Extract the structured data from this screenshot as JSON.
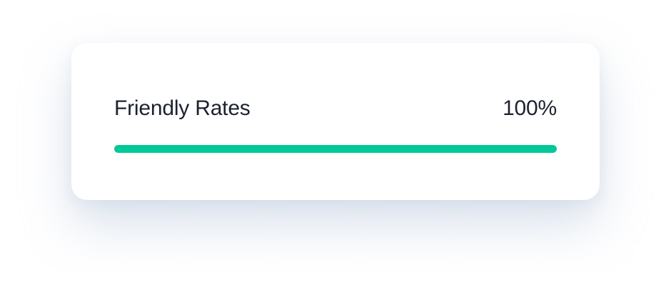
{
  "progress": {
    "label": "Friendly Rates",
    "value_text": "100%",
    "value_percent": 100,
    "fill_color": "#00c896",
    "track_color": "#e3e8ef"
  }
}
